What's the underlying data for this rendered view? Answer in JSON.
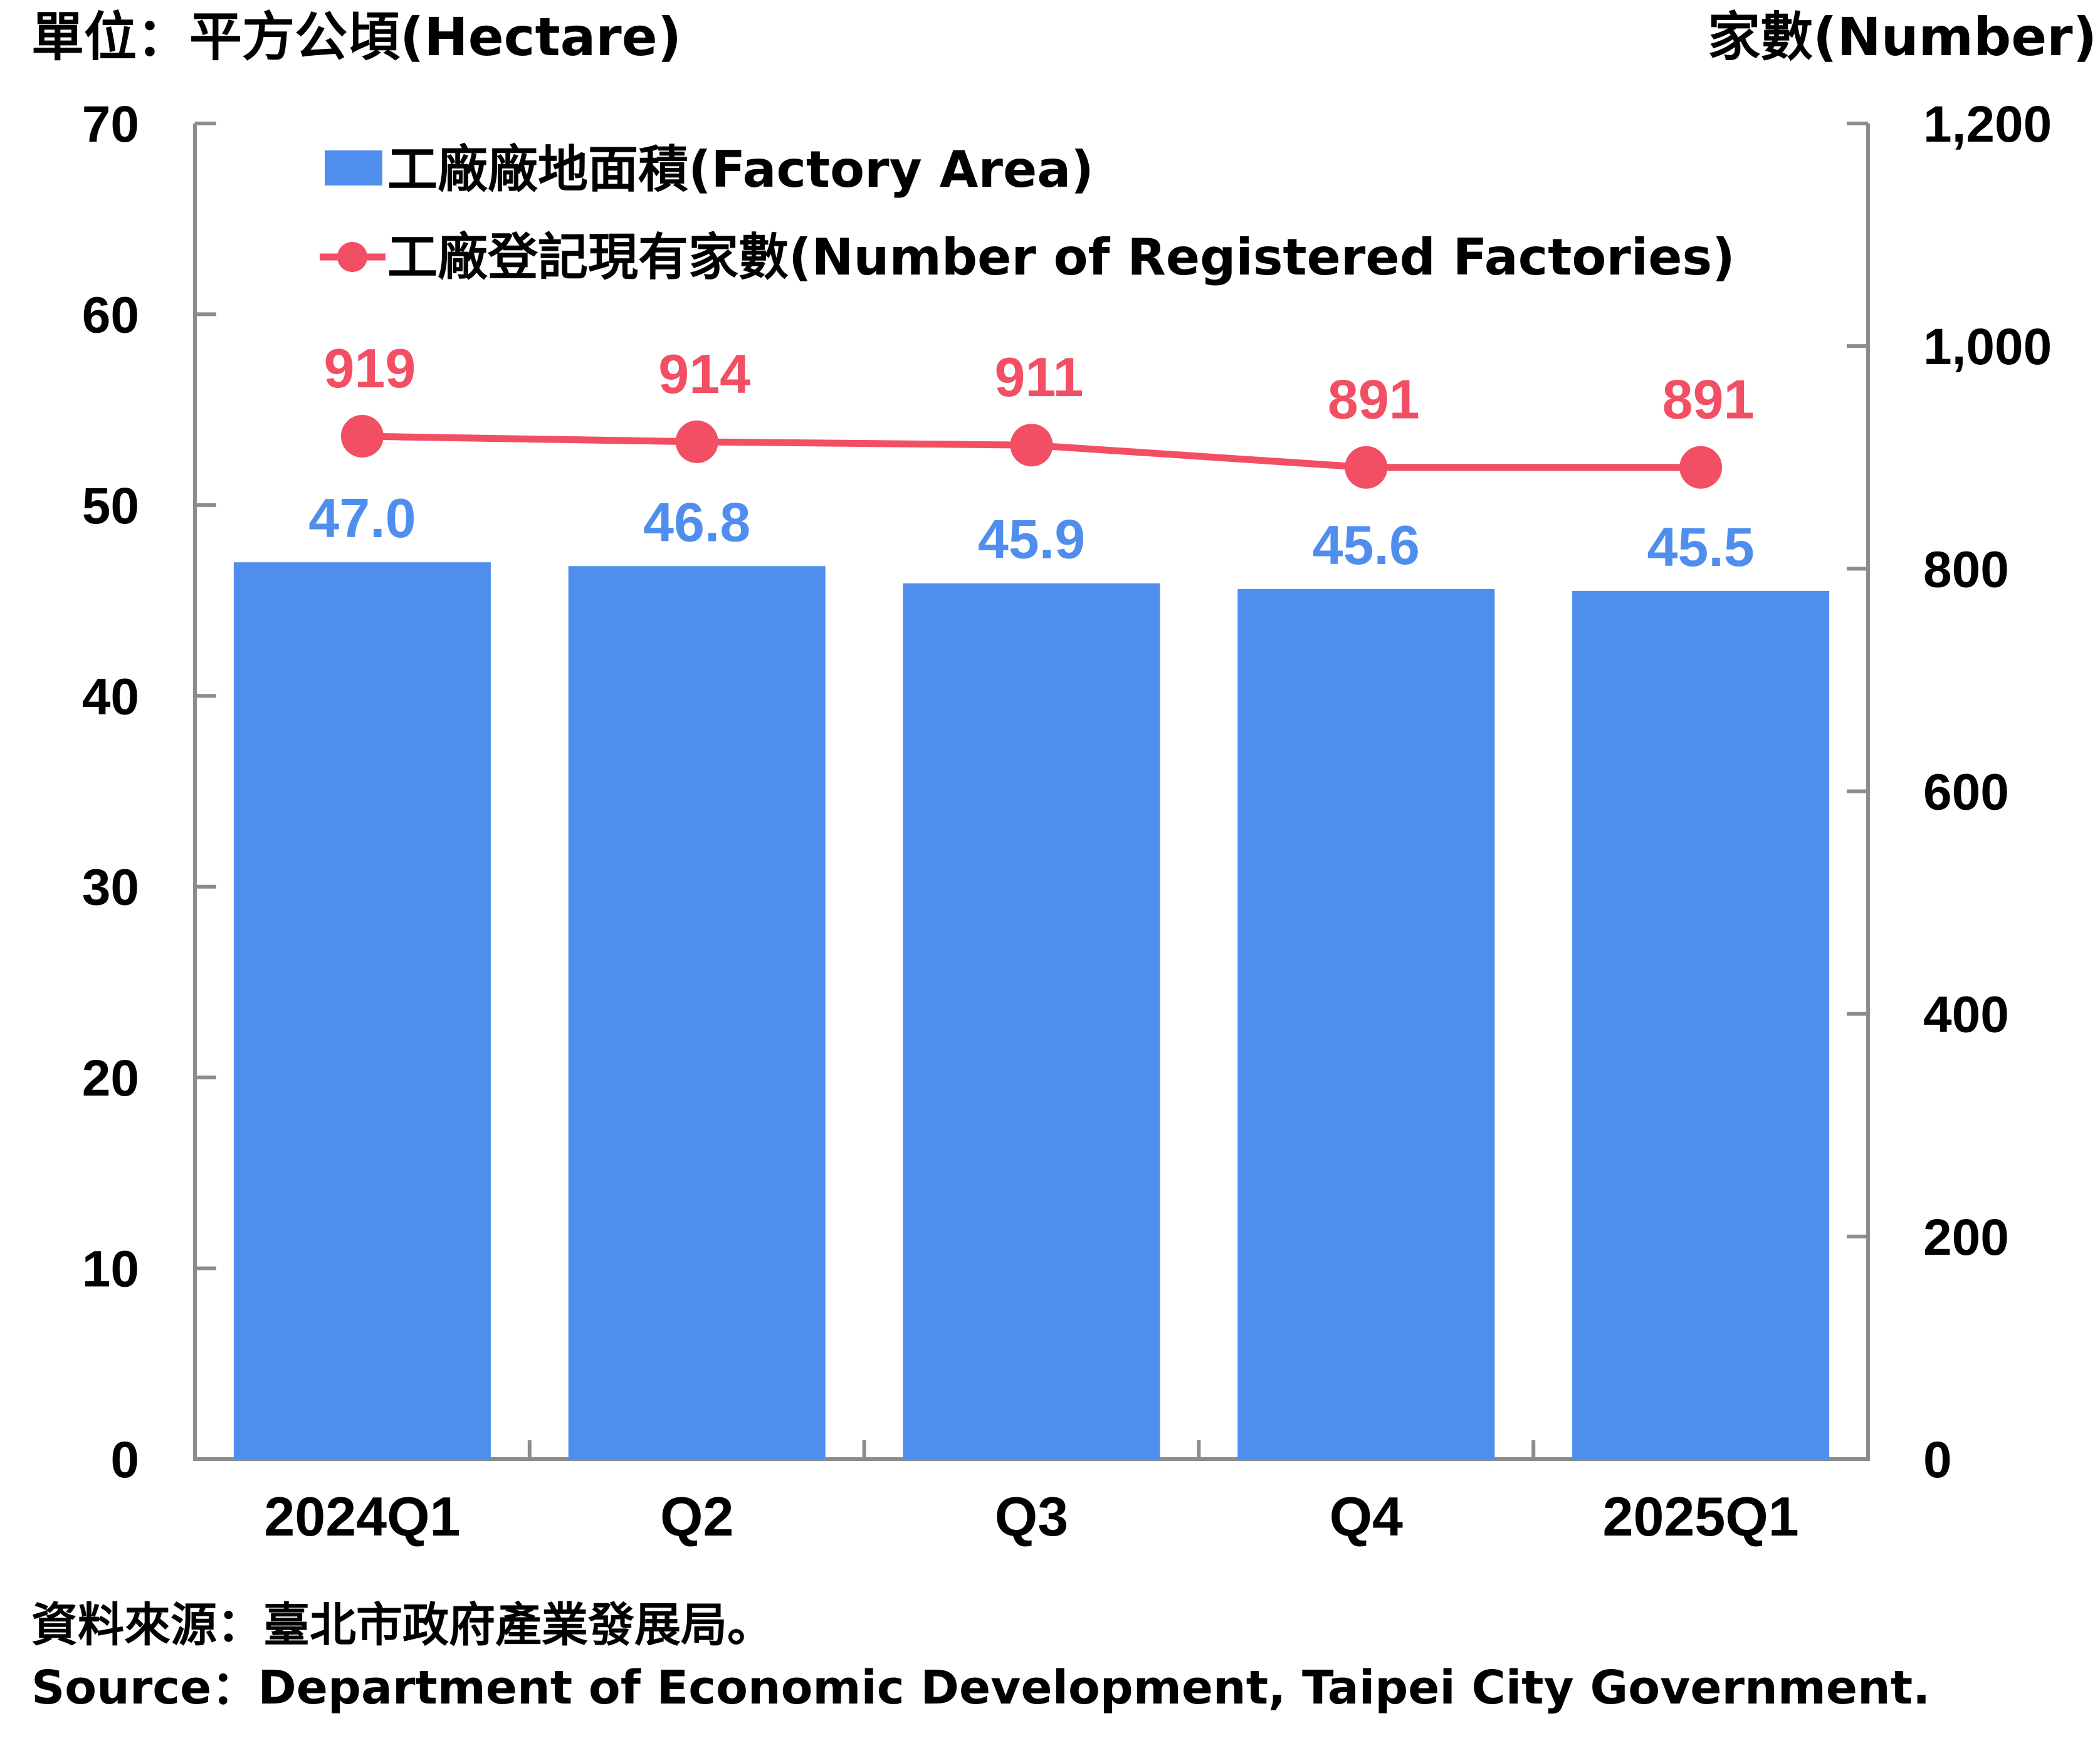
{
  "chart_data": {
    "type": "bar",
    "categories": [
      "2024Q1",
      "Q2",
      "Q3",
      "Q4",
      "2025Q1"
    ],
    "series": [
      {
        "name": "工廠廠地面積(Factory Area)",
        "type": "bar",
        "axis": "left",
        "values": [
          47.0,
          46.8,
          45.9,
          45.6,
          45.5
        ],
        "labels": [
          "47.0",
          "46.8",
          "45.9",
          "45.6",
          "45.5"
        ],
        "color": "#4f8eec"
      },
      {
        "name": "工廠登記現有家數(Number of Registered Factories)",
        "type": "line",
        "axis": "right",
        "values": [
          919,
          914,
          911,
          891,
          891
        ],
        "labels": [
          "919",
          "914",
          "911",
          "891",
          "891"
        ],
        "color": "#f24e64"
      }
    ],
    "left_axis": {
      "label": "單位：平方公頃(Hectare)",
      "range": [
        0,
        70
      ],
      "ticks": [
        "0",
        "10",
        "20",
        "30",
        "40",
        "50",
        "60",
        "70"
      ]
    },
    "right_axis": {
      "label": "家數(Number)",
      "range": [
        0,
        1200
      ],
      "ticks": [
        "0",
        "200",
        "400",
        "600",
        "800",
        "1,000",
        "1,200"
      ]
    },
    "legend_position": "top-left",
    "grid": false
  },
  "source": {
    "zh": "資料來源：臺北市政府產業發展局。",
    "en": "Source：Department of Economic Development, Taipei City Government."
  }
}
